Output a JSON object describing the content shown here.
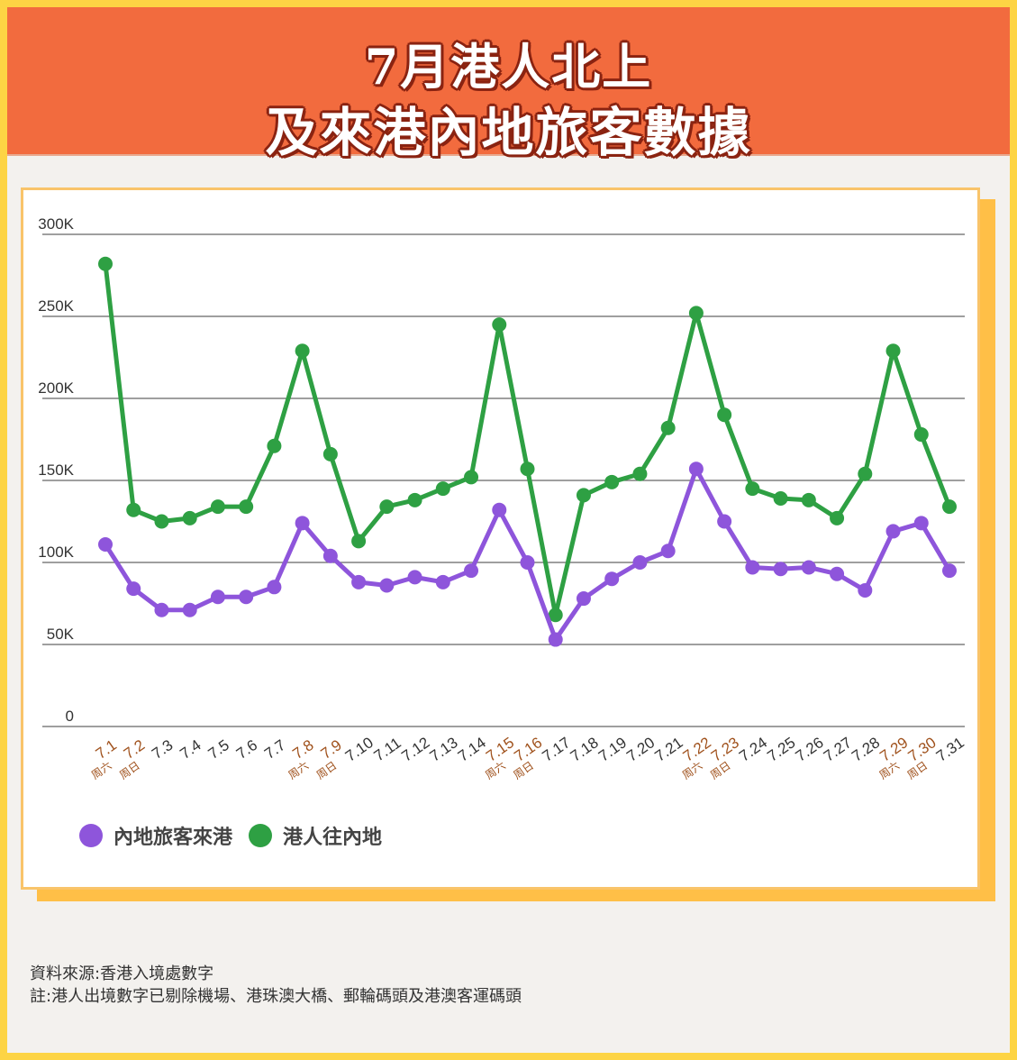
{
  "header": {
    "title_line1": "7月港人北上",
    "title_line2": "及來港內地旅客數據"
  },
  "colors": {
    "frame": "#fdd444",
    "header_bg": "#f26b3e",
    "title_outline": "#8a2311",
    "card_border": "#f9c46a",
    "card_shadow": "#ffbf47",
    "weekend_label": "#a0521d",
    "mainland_series": "#8e55db",
    "hk_series": "#2ea043"
  },
  "legend": {
    "mainland_label": "內地旅客來港",
    "hk_label": "港人往內地"
  },
  "footer": {
    "source": "資料來源:香港入境處數字",
    "note": "註:港人出境數字已剔除機場、港珠澳大橋、郵輪碼頭及港澳客運碼頭"
  },
  "chart_data": {
    "type": "line",
    "title": "7月港人北上及來港內地旅客數據",
    "xlabel": "",
    "ylabel": "",
    "ylim": [
      0,
      300000
    ],
    "yticks": [
      "0",
      "50K",
      "100K",
      "150K",
      "200K",
      "250K",
      "300K"
    ],
    "grid": true,
    "legend_position": "bottom-left",
    "categories": [
      "7.1",
      "7.2",
      "7.3",
      "7.4",
      "7.5",
      "7.6",
      "7.7",
      "7.8",
      "7.9",
      "7.10",
      "7.11",
      "7.12",
      "7.13",
      "7.14",
      "7.15",
      "7.16",
      "7.17",
      "7.18",
      "7.19",
      "7.20",
      "7.21",
      "7.22",
      "7.23",
      "7.24",
      "7.25",
      "7.26",
      "7.27",
      "7.28",
      "7.29",
      "7.30",
      "7.31"
    ],
    "weekend_annotations": {
      "7.1": "周六",
      "7.2": "周日",
      "7.8": "周六",
      "7.9": "周日",
      "7.15": "周六",
      "7.16": "周日",
      "7.22": "周六",
      "7.23": "周日",
      "7.29": "周六",
      "7.30": "周日"
    },
    "series": [
      {
        "name": "內地旅客來港",
        "color": "#8e55db",
        "values": [
          111000,
          84000,
          71000,
          71000,
          79000,
          79000,
          85000,
          124000,
          104000,
          88000,
          86000,
          91000,
          88000,
          95000,
          132000,
          100000,
          53000,
          78000,
          90000,
          100000,
          107000,
          157000,
          125000,
          97000,
          96000,
          97000,
          93000,
          83000,
          119000,
          124000,
          95000
        ]
      },
      {
        "name": "港人往內地",
        "color": "#2ea043",
        "values": [
          282000,
          132000,
          125000,
          127000,
          134000,
          134000,
          171000,
          229000,
          166000,
          113000,
          134000,
          138000,
          145000,
          152000,
          245000,
          157000,
          68000,
          141000,
          149000,
          154000,
          182000,
          252000,
          190000,
          145000,
          139000,
          138000,
          127000,
          154000,
          229000,
          178000,
          134000
        ]
      }
    ]
  }
}
